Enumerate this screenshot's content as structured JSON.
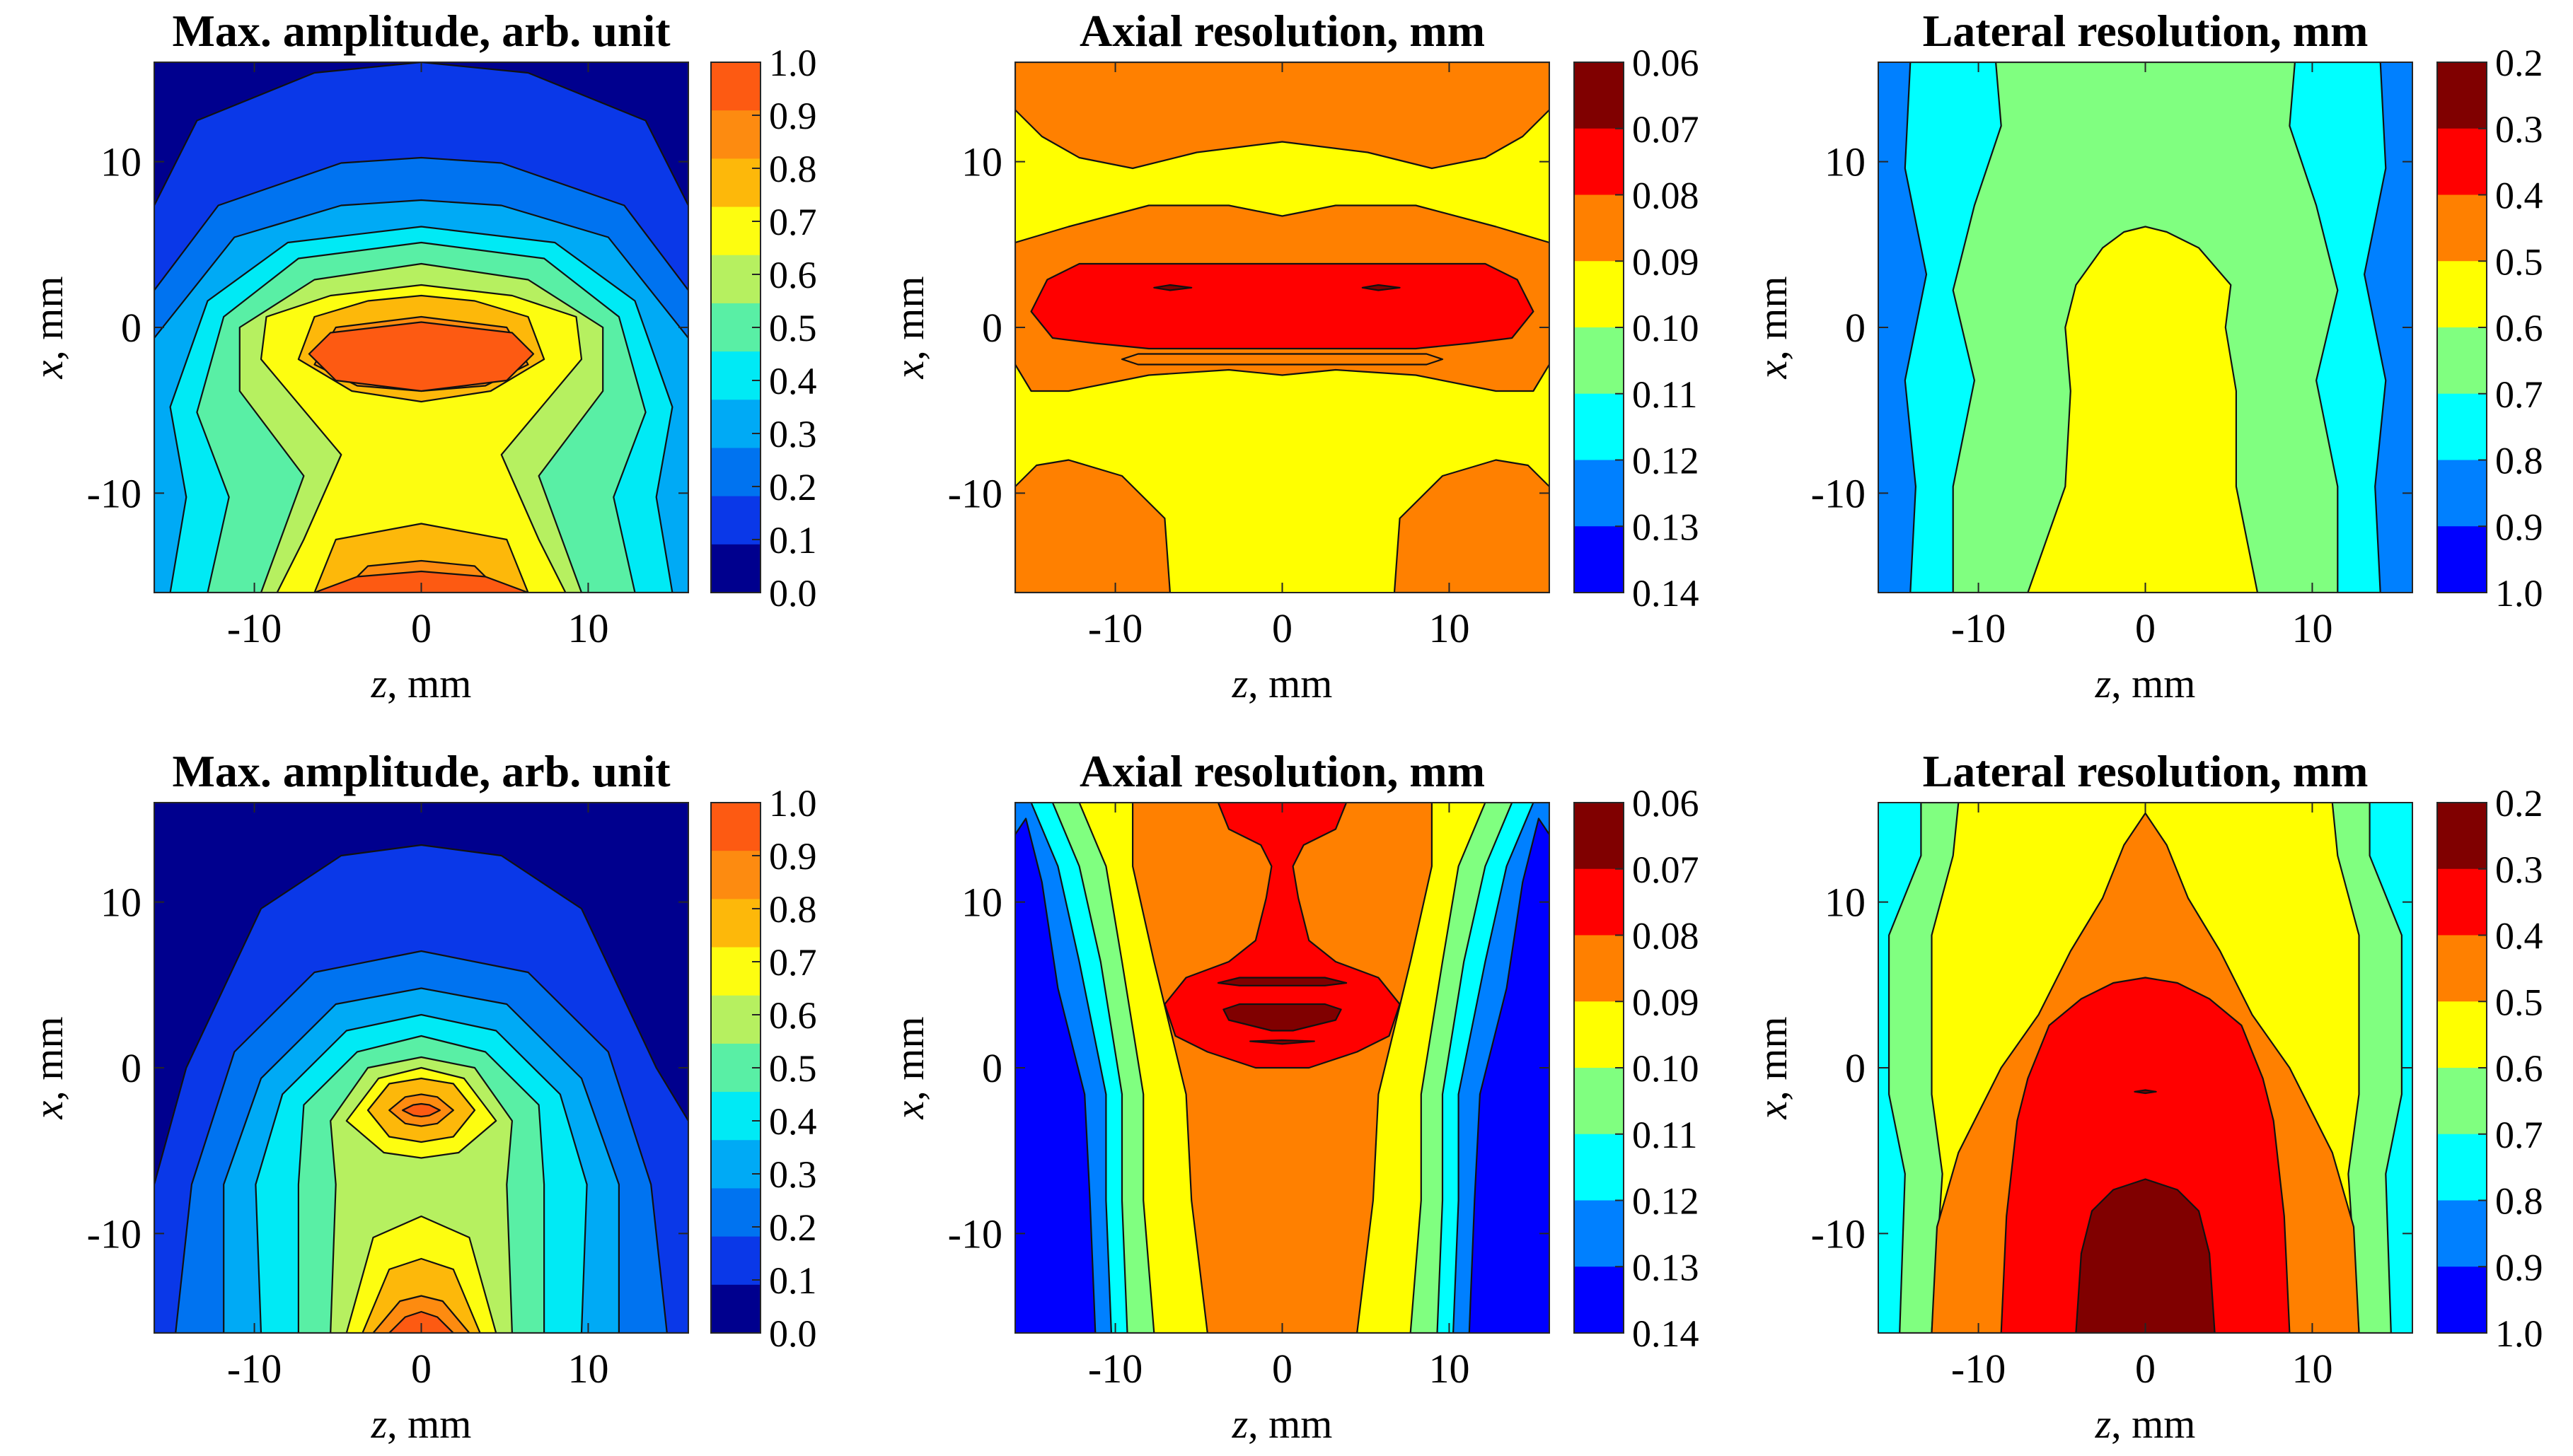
{
  "figure": {
    "rows": [
      "top",
      "bottom"
    ],
    "x_axis_label": "z, mm",
    "y_axis_label": "x, mm"
  },
  "colorbars": {
    "amplitude": {
      "values": [
        "1.0",
        "0.9",
        "0.8",
        "0.7",
        "0.6",
        "0.5",
        "0.4",
        "0.3",
        "0.2",
        "0.1",
        "0.0"
      ],
      "colors_top_to_bottom": [
        "#fd5a12",
        "#fd8b10",
        "#fdb80a",
        "#fdfd10",
        "#b6f060",
        "#59efa5",
        "#00eaf5",
        "#00aaf5",
        "#0073f0",
        "#0a38e8",
        "#00008e"
      ]
    },
    "axial": {
      "values": [
        "0.06",
        "0.07",
        "0.08",
        "0.09",
        "0.10",
        "0.11",
        "0.12",
        "0.13",
        "0.14"
      ],
      "colors_top_to_bottom": [
        "#800000",
        "#ff0000",
        "#ff8000",
        "#ffff00",
        "#80ff80",
        "#00ffff",
        "#0080ff",
        "#0000ff"
      ]
    },
    "lateral": {
      "values": [
        "0.2",
        "0.3",
        "0.4",
        "0.5",
        "0.6",
        "0.7",
        "0.8",
        "0.9",
        "1.0"
      ],
      "colors_top_to_bottom": [
        "#800000",
        "#ff0000",
        "#ff8000",
        "#ffff00",
        "#80ff80",
        "#00ffff",
        "#0080ff",
        "#0000ff"
      ]
    }
  },
  "chart_data": [
    {
      "type": "heatmap",
      "kind": "amplitude",
      "row": "top",
      "title": "Max. amplitude, arb. unit",
      "xlabel": "z, mm",
      "ylabel": "x, mm",
      "xlim": [
        -16,
        16
      ],
      "ylim": [
        -16,
        16
      ],
      "xticks": [
        -10,
        0,
        10
      ],
      "yticks": [
        10,
        0,
        -10
      ],
      "colorbar": "amplitude",
      "levels": [
        {
          "value": "0.0",
          "color": "#00008e"
        },
        {
          "value": "0.1",
          "color": "#0a38e8"
        },
        {
          "value": "0.2",
          "color": "#0073f0"
        },
        {
          "value": "0.3",
          "color": "#00aaf5"
        },
        {
          "value": "0.4",
          "color": "#00eaf5"
        },
        {
          "value": "0.5",
          "color": "#59efa5"
        },
        {
          "value": "0.6",
          "color": "#b6f060"
        },
        {
          "value": "0.7",
          "color": "#fdfd10"
        },
        {
          "value": "0.8",
          "color": "#fdb80a"
        },
        {
          "value": "0.9",
          "color": "#fd8b10"
        },
        {
          "value": "1.0",
          "color": "#fd5a12"
        }
      ],
      "features": "maximum near z=0, x=-2; second maximum at x=-16; saddle at x=-8"
    },
    {
      "type": "heatmap",
      "kind": "axial",
      "row": "top",
      "title": "Axial resolution, mm",
      "xlabel": "z, mm",
      "ylabel": "x, mm",
      "xlim": [
        -16,
        16
      ],
      "ylim": [
        -16,
        16
      ],
      "xticks": [
        -10,
        0,
        10
      ],
      "yticks": [
        10,
        0,
        -10
      ],
      "colorbar": "axial",
      "levels": [
        {
          "value": "0.06-0.07",
          "color": "#800000"
        },
        {
          "value": "0.07-0.08",
          "color": "#ff0000"
        },
        {
          "value": "0.08-0.09",
          "color": "#ff8000"
        },
        {
          "value": "0.09-0.10",
          "color": "#ffff00"
        }
      ],
      "features": "red (0.07-0.08) band around x=0, yellow background, orange top band and lower corners"
    },
    {
      "type": "heatmap",
      "kind": "lateral",
      "row": "top",
      "title": "Lateral resolution, mm",
      "xlabel": "z, mm",
      "ylabel": "x, mm",
      "xlim": [
        -16,
        16
      ],
      "ylim": [
        -16,
        16
      ],
      "xticks": [
        -10,
        0,
        10
      ],
      "yticks": [
        10,
        0,
        -10
      ],
      "colorbar": "lateral",
      "levels": [
        {
          "value": "0.5-0.6",
          "color": "#ffff00"
        },
        {
          "value": "0.6-0.7",
          "color": "#80ff80"
        },
        {
          "value": "0.7-0.8",
          "color": "#00ffff"
        },
        {
          "value": "0.8-0.9",
          "color": "#0080ff"
        }
      ],
      "features": "yellow central column below x=6, green surround, cyan and blue toward the sides"
    },
    {
      "type": "heatmap",
      "kind": "amplitude",
      "row": "bottom",
      "title": "Max. amplitude, arb. unit",
      "xlabel": "z, mm",
      "ylabel": "x, mm",
      "xlim": [
        -16,
        16
      ],
      "ylim": [
        -16,
        16
      ],
      "xticks": [
        -10,
        0,
        10
      ],
      "yticks": [
        10,
        0,
        -10
      ],
      "colorbar": "amplitude",
      "levels": [
        {
          "value": "0.0",
          "color": "#00008e"
        },
        {
          "value": "0.1",
          "color": "#0a38e8"
        },
        {
          "value": "0.2",
          "color": "#0073f0"
        },
        {
          "value": "0.3",
          "color": "#00aaf5"
        },
        {
          "value": "0.4",
          "color": "#00eaf5"
        },
        {
          "value": "0.5",
          "color": "#59efa5"
        },
        {
          "value": "0.6",
          "color": "#b6f060"
        },
        {
          "value": "0.7",
          "color": "#fdfd10"
        },
        {
          "value": "0.8",
          "color": "#fdb80a"
        },
        {
          "value": "0.9",
          "color": "#fd8b10"
        },
        {
          "value": "1.0",
          "color": "#fd5a12"
        }
      ],
      "features": "narrow peak near z=0, x=-2; secondary peak at x=-16; tighter concentric contours"
    },
    {
      "type": "heatmap",
      "kind": "axial",
      "row": "bottom",
      "title": "Axial resolution, mm",
      "xlabel": "z, mm",
      "ylabel": "x, mm",
      "xlim": [
        -16,
        16
      ],
      "ylim": [
        -16,
        16
      ],
      "xticks": [
        -10,
        0,
        10
      ],
      "yticks": [
        10,
        0,
        -10
      ],
      "colorbar": "axial",
      "levels": [
        {
          "value": "0.06-0.07",
          "color": "#800000"
        },
        {
          "value": "0.07-0.08",
          "color": "#ff0000"
        },
        {
          "value": "0.08-0.09",
          "color": "#ff8000"
        },
        {
          "value": "0.09-0.10",
          "color": "#ffff00"
        },
        {
          "value": "0.10-0.11",
          "color": "#80ff80"
        },
        {
          "value": "0.11-0.12",
          "color": "#00ffff"
        },
        {
          "value": "0.12-0.13",
          "color": "#0080ff"
        },
        {
          "value": "0.13-0.14",
          "color": "#0000ff"
        }
      ],
      "features": "orange centre with red blob near x=0 and dark red core; bands degrade through yellow, green, cyan to blue at the sides"
    },
    {
      "type": "heatmap",
      "kind": "lateral",
      "row": "bottom",
      "title": "Lateral resolution, mm",
      "xlabel": "z, mm",
      "ylabel": "x, mm",
      "xlim": [
        -16,
        16
      ],
      "ylim": [
        -16,
        16
      ],
      "xticks": [
        -10,
        0,
        10
      ],
      "yticks": [
        10,
        0,
        -10
      ],
      "colorbar": "lateral",
      "levels": [
        {
          "value": "0.2-0.3",
          "color": "#800000"
        },
        {
          "value": "0.3-0.4",
          "color": "#ff0000"
        },
        {
          "value": "0.4-0.5",
          "color": "#ff8000"
        },
        {
          "value": "0.5-0.6",
          "color": "#ffff00"
        },
        {
          "value": "0.6-0.7",
          "color": "#80ff80"
        },
        {
          "value": "0.7-0.8",
          "color": "#00ffff"
        },
        {
          "value": "0.8-0.9",
          "color": "#0080ff"
        }
      ],
      "features": "dark red column at bottom centre, red dome to x=4, orange arch to x=15, yellow, green and cyan bands at the sides"
    }
  ]
}
